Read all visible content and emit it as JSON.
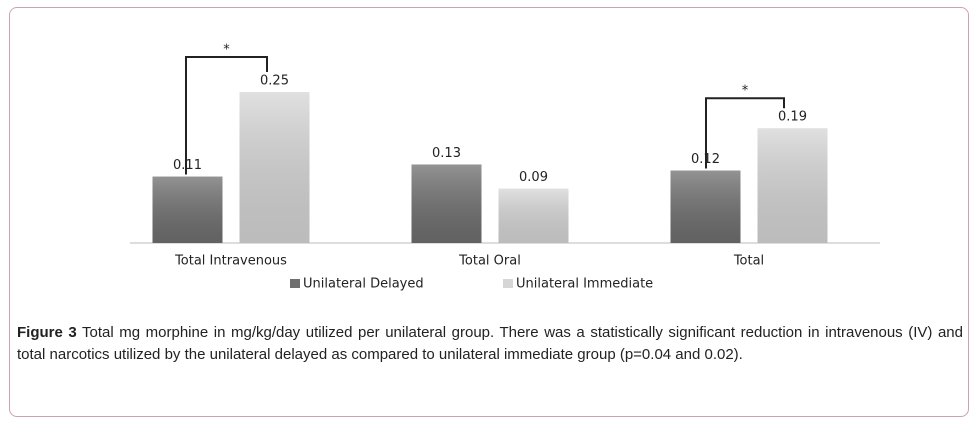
{
  "chart_data": {
    "type": "grouped-bar",
    "categories": [
      "Total Intravenous",
      "Total Oral",
      "Total"
    ],
    "series": [
      {
        "name": "Unilateral Delayed",
        "color": "#6f6f6f",
        "values": [
          0.11,
          0.13,
          0.12
        ]
      },
      {
        "name": "Unilateral Immediate",
        "color": "#d6d6d6",
        "values": [
          0.25,
          0.09,
          0.19
        ]
      }
    ],
    "annotations": [
      "*",
      "*"
    ]
  },
  "caption": {
    "label": "Figure 3",
    "text": "Total mg morphine in mg/kg/day utilized per unilateral group. There was a statistically significant reduction in intravenous (IV) and total narcotics utilized by the unilateral delayed as compared to unilateral immediate group (p=0.04 and 0.02)."
  }
}
